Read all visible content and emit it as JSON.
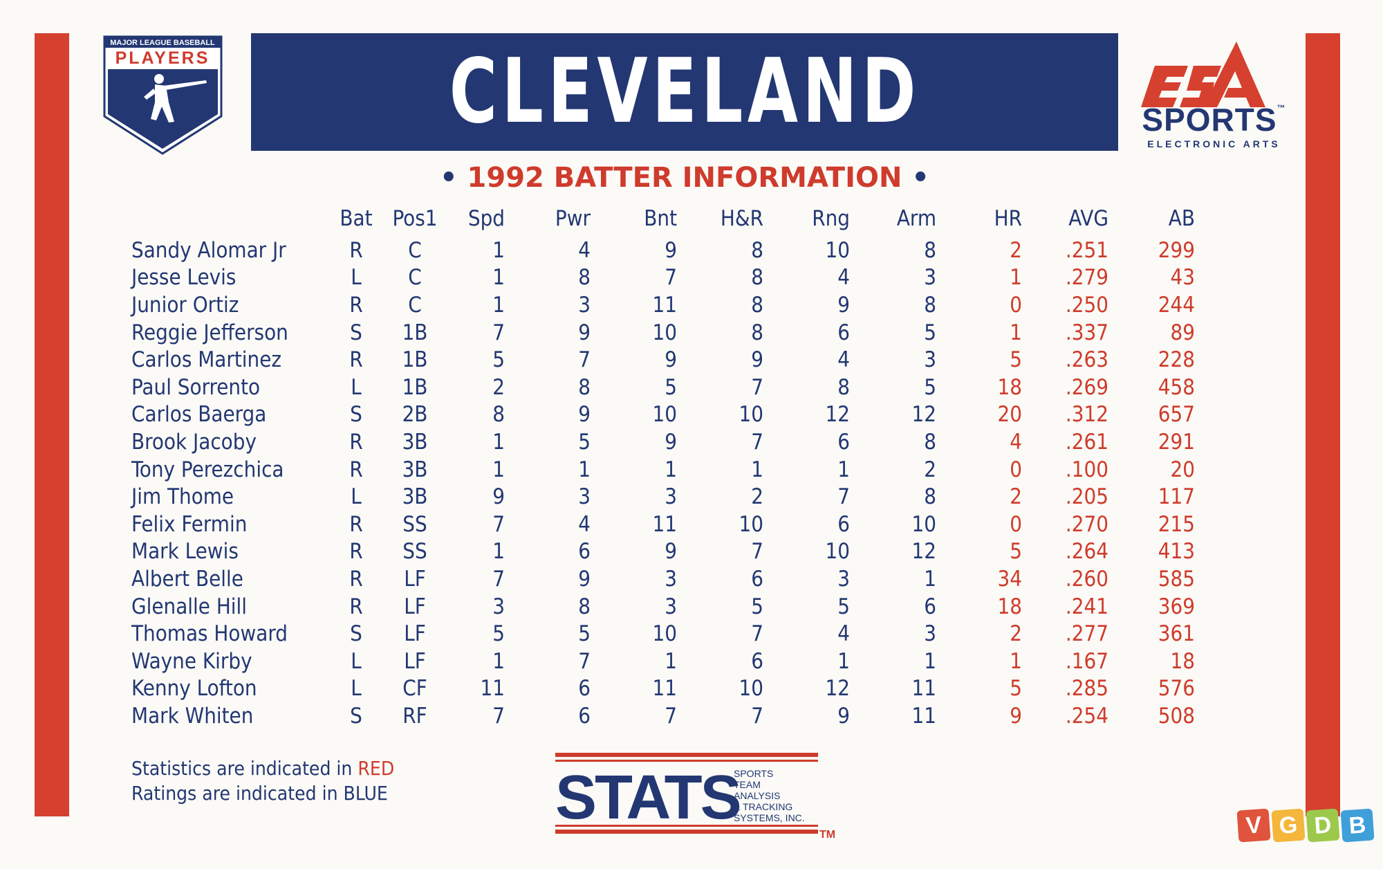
{
  "card": {
    "title": "CLEVELAND",
    "subtitle": "1992 BATTER INFORMATION",
    "colors": {
      "red": "#d6402f",
      "blue": "#233773",
      "stats_red": "#cf3b2c",
      "background": "#fbfaf6"
    }
  },
  "logos": {
    "mlbpa": {
      "line1": "MAJOR LEAGUE BASEBALL",
      "line2": "PLAYERS"
    },
    "ea": {
      "sports": "SPORTS",
      "tm": "™",
      "company": "ELECTRONIC ARTS"
    },
    "stats": {
      "word": "STATS",
      "sub1": "SPORTS",
      "sub2": "TEAM",
      "sub3": "ANALYSIS",
      "sub4": "& TRACKING",
      "sub5": "SYSTEMS, INC.",
      "tm": "TM"
    },
    "vgdb": {
      "letters": [
        "V",
        "G",
        "D",
        "B"
      ],
      "colors": [
        "#e0533c",
        "#f4b63b",
        "#9cc94c",
        "#3f9fd9"
      ]
    }
  },
  "table": {
    "headers": [
      "",
      "Bat",
      "Pos1",
      "Spd",
      "Pwr",
      "Bnt",
      "H&R",
      "Rng",
      "Arm",
      "HR",
      "AVG",
      "AB"
    ],
    "rows": [
      [
        "Sandy Alomar Jr",
        "R",
        "C",
        "1",
        "4",
        "9",
        "8",
        "10",
        "8",
        "2",
        ".251",
        "299"
      ],
      [
        "Jesse Levis",
        "L",
        "C",
        "1",
        "8",
        "7",
        "8",
        "4",
        "3",
        "1",
        ".279",
        "43"
      ],
      [
        "Junior Ortiz",
        "R",
        "C",
        "1",
        "3",
        "11",
        "8",
        "9",
        "8",
        "0",
        ".250",
        "244"
      ],
      [
        "Reggie Jefferson",
        "S",
        "1B",
        "7",
        "9",
        "10",
        "8",
        "6",
        "5",
        "1",
        ".337",
        "89"
      ],
      [
        "Carlos Martinez",
        "R",
        "1B",
        "5",
        "7",
        "9",
        "9",
        "4",
        "3",
        "5",
        ".263",
        "228"
      ],
      [
        "Paul Sorrento",
        "L",
        "1B",
        "2",
        "8",
        "5",
        "7",
        "8",
        "5",
        "18",
        ".269",
        "458"
      ],
      [
        "Carlos Baerga",
        "S",
        "2B",
        "8",
        "9",
        "10",
        "10",
        "12",
        "12",
        "20",
        ".312",
        "657"
      ],
      [
        "Brook Jacoby",
        "R",
        "3B",
        "1",
        "5",
        "9",
        "7",
        "6",
        "8",
        "4",
        ".261",
        "291"
      ],
      [
        "Tony Perezchica",
        "R",
        "3B",
        "1",
        "1",
        "1",
        "1",
        "1",
        "2",
        "0",
        ".100",
        "20"
      ],
      [
        "Jim Thome",
        "L",
        "3B",
        "9",
        "3",
        "3",
        "2",
        "7",
        "8",
        "2",
        ".205",
        "117"
      ],
      [
        "Felix Fermin",
        "R",
        "SS",
        "7",
        "4",
        "11",
        "10",
        "6",
        "10",
        "0",
        ".270",
        "215"
      ],
      [
        "Mark Lewis",
        "R",
        "SS",
        "1",
        "6",
        "9",
        "7",
        "10",
        "12",
        "5",
        ".264",
        "413"
      ],
      [
        "Albert Belle",
        "R",
        "LF",
        "7",
        "9",
        "3",
        "6",
        "3",
        "1",
        "34",
        ".260",
        "585"
      ],
      [
        "Glenalle Hill",
        "R",
        "LF",
        "3",
        "8",
        "3",
        "5",
        "5",
        "6",
        "18",
        ".241",
        "369"
      ],
      [
        "Thomas Howard",
        "S",
        "LF",
        "5",
        "5",
        "10",
        "7",
        "4",
        "3",
        "2",
        ".277",
        "361"
      ],
      [
        "Wayne Kirby",
        "L",
        "LF",
        "1",
        "7",
        "1",
        "6",
        "1",
        "1",
        "1",
        ".167",
        "18"
      ],
      [
        "Kenny Lofton",
        "L",
        "CF",
        "11",
        "6",
        "11",
        "10",
        "12",
        "11",
        "5",
        ".285",
        "576"
      ],
      [
        "Mark Whiten",
        "S",
        "RF",
        "7",
        "6",
        "7",
        "7",
        "9",
        "11",
        "9",
        ".254",
        "508"
      ]
    ]
  },
  "legend": {
    "line1_prefix": "Statistics are indicated in ",
    "line1_word": "RED",
    "line2_prefix": "Ratings are indicated in ",
    "line2_word": "BLUE"
  }
}
